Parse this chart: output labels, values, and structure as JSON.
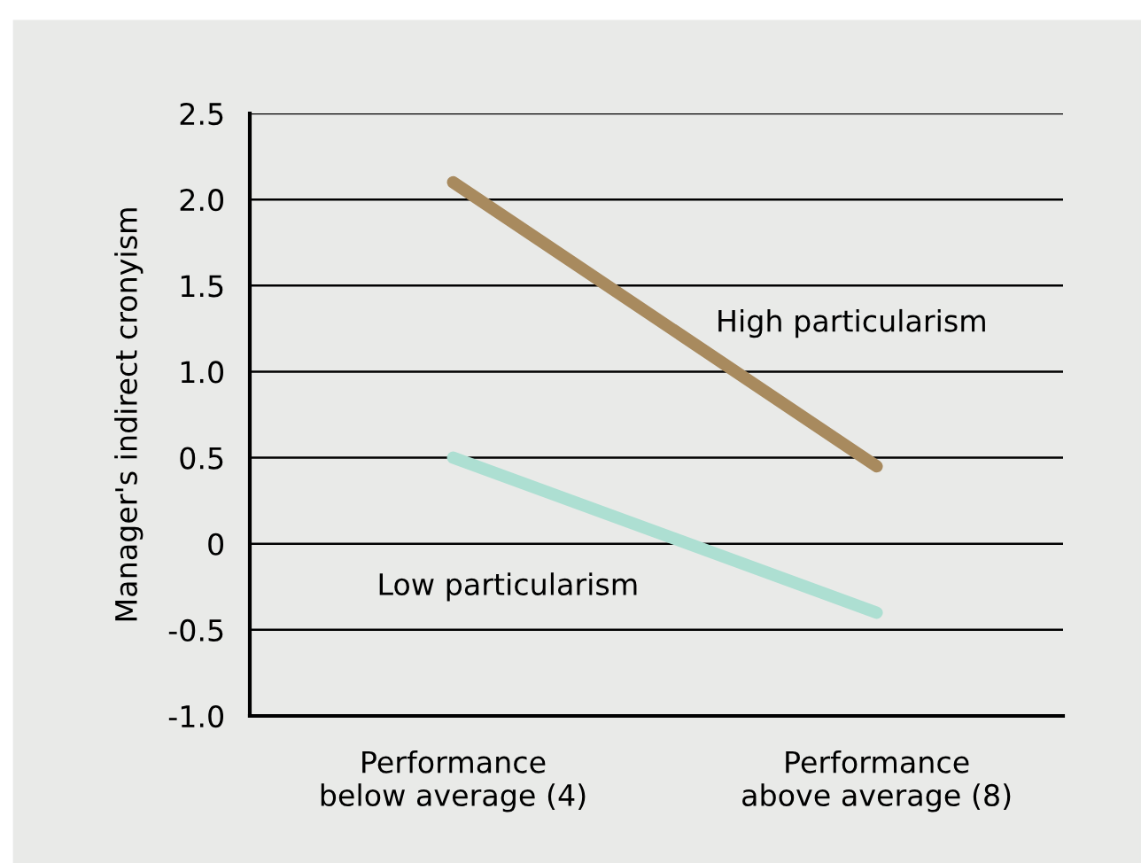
{
  "chart_data": {
    "type": "line",
    "ylabel": "Manager's indirect cronyism",
    "categories": [
      "Performance\nbelow average (4)",
      "Performance\nabove average (8)"
    ],
    "series": [
      {
        "name": "High particularism",
        "color": "#a88a5e",
        "values": [
          2.1,
          0.45
        ]
      },
      {
        "name": "Low particularism",
        "color": "#addfd2",
        "values": [
          0.5,
          -0.4
        ]
      }
    ],
    "ylim": [
      -1.0,
      2.5
    ],
    "yticks": [
      {
        "value": -1.0,
        "label": "-1.0"
      },
      {
        "value": -0.5,
        "label": "-0.5"
      },
      0,
      0.5,
      {
        "value": 1.0,
        "label": "1.0"
      },
      1.5,
      {
        "value": 2.0,
        "label": "2.0"
      },
      2.5
    ],
    "grid": "y",
    "legend": false,
    "marker": "none",
    "line_style": "solid"
  }
}
